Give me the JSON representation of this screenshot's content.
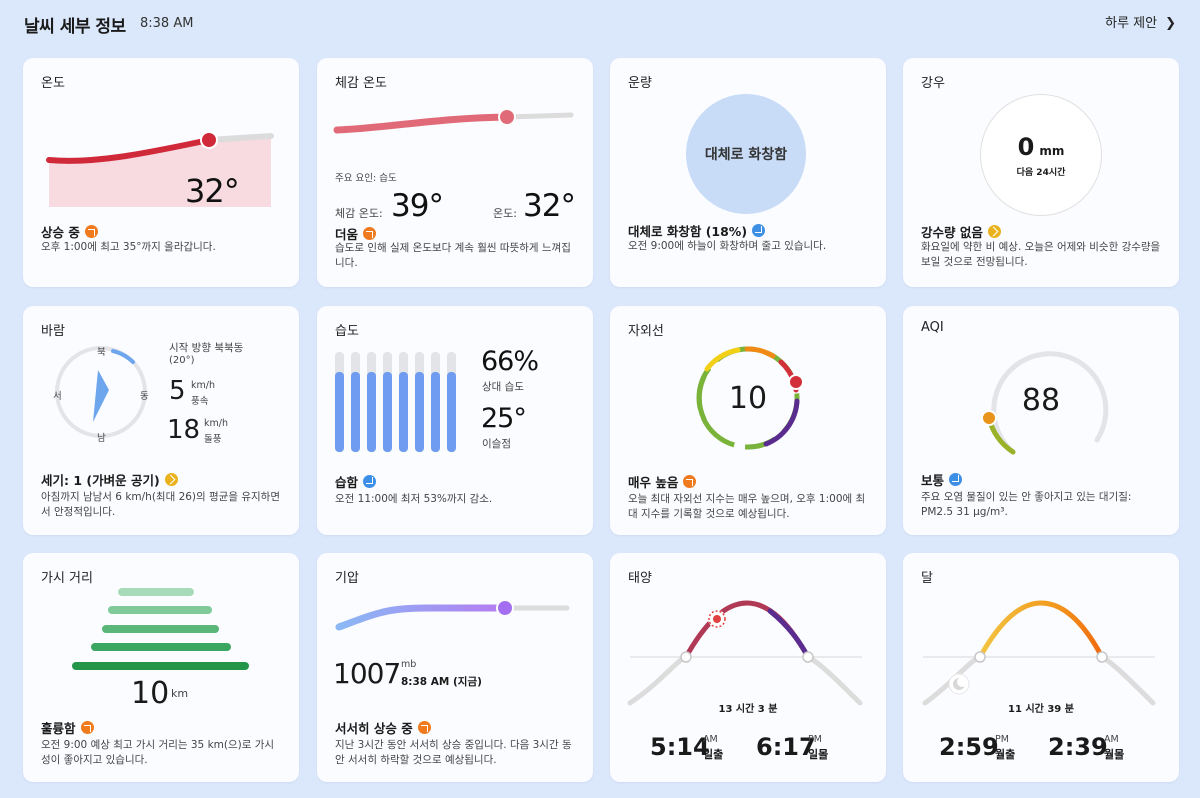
{
  "header": {
    "title": "날씨 세부 정보",
    "time": "8:38 AM",
    "daily_link": "하루 제안",
    "chevron_icon": "chevron-right-icon"
  },
  "cards": {
    "temperature": {
      "title": "온도",
      "value": "32°",
      "status": "상승 중",
      "trend": "up",
      "desc": "오후 1:00에 최고 35°까지 올라갑니다."
    },
    "feels_like": {
      "title": "체감 온도",
      "factor": "주요 요인: 습도",
      "feels_label": "체감 온도:",
      "feels_value": "39°",
      "temp_label": "온도:",
      "temp_value": "32°",
      "status": "더움",
      "trend": "up",
      "desc": "습도로 인해 실제 온도보다 계속 훨씬 따뜻하게 느껴집니다."
    },
    "cloud": {
      "title": "운량",
      "circle_text": "대체로 화창함",
      "status": "대체로 화창함 (18%)",
      "trend": "down",
      "desc": "오전 9:00에 하늘이 화창하며 줄고 있습니다."
    },
    "rain": {
      "title": "강우",
      "value": "0",
      "unit": "mm",
      "sub": "다음 24시간",
      "status": "강수량 없음",
      "trend": "flat",
      "desc": "화요일에 약한 비 예상. 오늘은 어제와 비슷한 강수량을 보일 것으로 전망됩니다."
    },
    "wind": {
      "title": "바람",
      "dir_n": "북",
      "dir_e": "동",
      "dir_s": "남",
      "dir_w": "서",
      "direction_label": "시작 방향 북북동",
      "direction_deg": "(20°)",
      "speed": "5",
      "speed_unit": "km/h",
      "speed_label": "풍속",
      "gust": "18",
      "gust_unit": "km/h",
      "gust_label": "돌풍",
      "status": "세기: 1 (가벼운 공기)",
      "trend": "flat",
      "desc": "아침까지 남남서 6 km/h(최대 26)의 평균을 유지하면서 안정적입니다."
    },
    "humidity": {
      "title": "습도",
      "bars": [
        0.8,
        0.8,
        0.8,
        0.8,
        0.8,
        0.8,
        0.8,
        0.8
      ],
      "humidity_value": "66%",
      "humidity_label": "상대 습도",
      "dew_value": "25°",
      "dew_label": "이슬점",
      "status": "습함",
      "trend": "down",
      "desc": "오전 11:00에 최저 53%까지 감소."
    },
    "uv": {
      "title": "자외선",
      "value": "10",
      "status": "매우 높음",
      "trend": "up",
      "desc": "오늘 최대 자외선 지수는 매우 높으며, 오후 1:00에 최대 지수를 기록할 것으로 예상됩니다."
    },
    "aqi": {
      "title": "AQI",
      "value": "88",
      "status": "보통",
      "trend": "down",
      "desc": "주요 오염 물질이 있는 안 좋아지고 있는 대기질: PM2.5 31 μg/m³."
    },
    "visibility": {
      "title": "가시 거리",
      "value": "10",
      "unit": "km",
      "status": "훌륭함",
      "trend": "up",
      "desc": "오전 9:00 예상 최고 가시 거리는 35 km(으)로 가시성이 좋아지고 있습니다."
    },
    "pressure": {
      "title": "기압",
      "value": "1007",
      "unit": "mb",
      "time": "8:38 AM (지금)",
      "status": "서서히 상승 중",
      "trend": "up",
      "desc": "지난 3시간 동안 서서히 상승 중입니다. 다음 3시간 동안 서서히 하락할 것으로 예상됩니다."
    },
    "sun": {
      "title": "태양",
      "duration": "13 시간 3 분",
      "rise_time": "5:14",
      "rise_ampm": "AM",
      "rise_label": "일출",
      "set_time": "6:17",
      "set_ampm": "PM",
      "set_label": "일몰"
    },
    "moon": {
      "title": "달",
      "duration": "11 시간 39 분",
      "rise_time": "2:59",
      "rise_ampm": "PM",
      "rise_label": "월출",
      "set_time": "2:39",
      "set_ampm": "AM",
      "set_label": "월몰"
    }
  },
  "colors": {
    "background": "#dbe8fb",
    "card": "#fafcff",
    "temp": "#d02a3a",
    "pressure": "#a98bf5",
    "humidity": "#6f9cf0",
    "visibility": "#2ea052",
    "trend_up": "#f07a1e",
    "trend_down": "#3d8fe6",
    "trend_flat": "#eab21c"
  }
}
